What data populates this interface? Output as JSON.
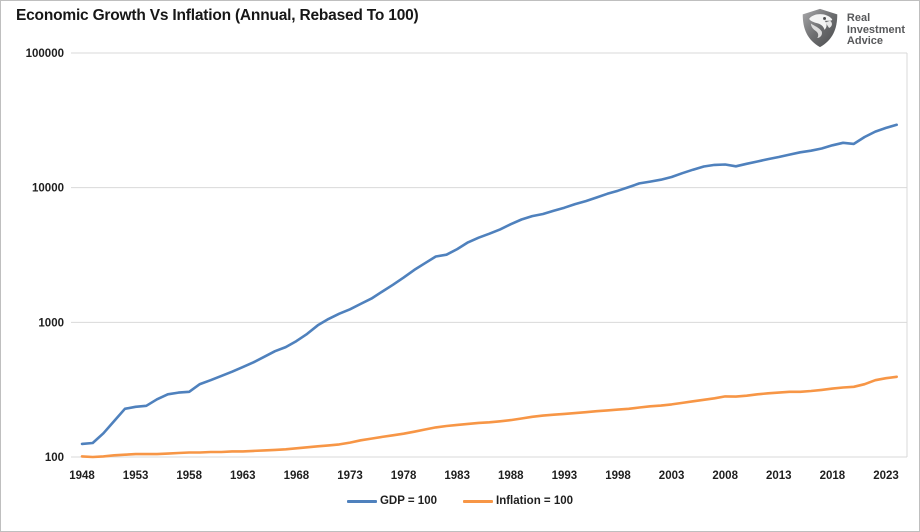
{
  "title": "Economic Growth Vs Inflation (Annual, Rebased To 100)",
  "logo": {
    "line1": "Real",
    "line2": "Investment",
    "line3": "Advice"
  },
  "colors": {
    "gdp": "#4F81BD",
    "inflation": "#F79646",
    "grid": "#D9D9D9",
    "axis_text": "#1f1f1f",
    "logo_text": "#58595B"
  },
  "legend": {
    "items": [
      {
        "label": "GDP = 100",
        "color": "#4F81BD"
      },
      {
        "label": "Inflation = 100",
        "color": "#F79646"
      }
    ]
  },
  "chart_data": {
    "type": "line",
    "title": "Economic Growth Vs Inflation (Annual, Rebased To 100)",
    "xlabel": "",
    "ylabel": "",
    "grid": "horizontal",
    "legend_position": "bottom",
    "y_axis": {
      "scale": "log",
      "range": [
        100,
        100000
      ],
      "ticks": [
        100,
        1000,
        10000,
        100000
      ]
    },
    "x_axis": {
      "range": [
        1948,
        2024
      ],
      "ticks": [
        1948,
        1953,
        1958,
        1963,
        1968,
        1973,
        1978,
        1983,
        1988,
        1993,
        1998,
        2003,
        2008,
        2013,
        2018,
        2023
      ]
    },
    "x": [
      1948,
      1949,
      1950,
      1951,
      1952,
      1953,
      1954,
      1955,
      1956,
      1957,
      1958,
      1959,
      1960,
      1961,
      1962,
      1963,
      1964,
      1965,
      1966,
      1967,
      1968,
      1969,
      1970,
      1971,
      1972,
      1973,
      1974,
      1975,
      1976,
      1977,
      1978,
      1979,
      1980,
      1981,
      1982,
      1983,
      1984,
      1985,
      1986,
      1987,
      1988,
      1989,
      1990,
      1991,
      1992,
      1993,
      1994,
      1995,
      1996,
      1997,
      1998,
      1999,
      2000,
      2001,
      2002,
      2003,
      2004,
      2005,
      2006,
      2007,
      2008,
      2009,
      2010,
      2011,
      2012,
      2013,
      2014,
      2015,
      2016,
      2017,
      2018,
      2019,
      2020,
      2021,
      2022,
      2023,
      2024
    ],
    "series": [
      {
        "name": "GDP = 100",
        "color": "#4F81BD",
        "values": [
          125,
          127,
          150,
          185,
          228,
          236,
          240,
          268,
          292,
          301,
          305,
          348,
          372,
          400,
          430,
          465,
          505,
          555,
          610,
          655,
          725,
          820,
          950,
          1060,
          1160,
          1250,
          1370,
          1500,
          1690,
          1900,
          2150,
          2450,
          2750,
          3080,
          3180,
          3500,
          3920,
          4250,
          4550,
          4900,
          5350,
          5800,
          6150,
          6380,
          6750,
          7100,
          7550,
          7950,
          8450,
          9000,
          9500,
          10100,
          10750,
          11100,
          11450,
          12000,
          12800,
          13600,
          14350,
          14750,
          14850,
          14400,
          15050,
          15650,
          16300,
          16900,
          17600,
          18300,
          18800,
          19550,
          20650,
          21550,
          21150,
          23800,
          26100,
          27800,
          29300
        ]
      },
      {
        "name": "Inflation = 100",
        "color": "#F79646",
        "values": [
          101,
          100,
          101,
          103,
          104,
          105,
          105,
          105,
          106,
          107,
          108,
          108,
          109,
          109,
          110,
          110,
          111,
          112,
          113,
          114,
          116,
          118,
          120,
          122,
          124,
          128,
          133,
          137,
          141,
          145,
          149,
          154,
          160,
          166,
          170,
          173,
          176,
          179,
          181,
          184,
          188,
          193,
          199,
          203,
          206,
          209,
          212,
          215,
          219,
          222,
          225,
          228,
          233,
          238,
          241,
          246,
          252,
          259,
          266,
          273,
          282,
          281,
          285,
          292,
          297,
          301,
          305,
          305,
          309,
          315,
          322,
          328,
          332,
          347,
          372,
          385,
          394
        ]
      }
    ]
  }
}
